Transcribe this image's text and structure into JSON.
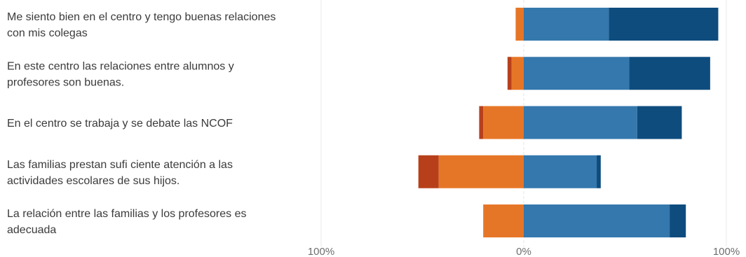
{
  "chart_data": {
    "type": "bar",
    "orientation": "horizontal",
    "stacked": "diverging",
    "categories": [
      [
        "Me siento bien en el centro y tengo buenas relaciones",
        "con mis colegas"
      ],
      [
        "En este centro las relaciones entre alumnos y",
        "profesores son buenas."
      ],
      [
        "En el centro se trabaja y se debate las NCOF"
      ],
      [
        "Las familias prestan sufi ciente atención a las",
        "actividades escolares de sus hijos."
      ],
      [
        "La relación entre las familias y los profesores es",
        "adecuada"
      ]
    ],
    "series": [
      {
        "side": "negative",
        "color": "#b7401b",
        "values": [
          0,
          2,
          2,
          10,
          0
        ]
      },
      {
        "side": "negative",
        "color": "#e67627",
        "values": [
          4,
          6,
          20,
          42,
          20
        ]
      },
      {
        "side": "positive",
        "color": "#3478ad",
        "values": [
          42,
          52,
          56,
          36,
          72
        ]
      },
      {
        "side": "positive",
        "color": "#0e4c7e",
        "values": [
          54,
          40,
          22,
          2,
          8
        ]
      }
    ],
    "xlim": [
      -100,
      100
    ],
    "xticks": [
      {
        "value": -100,
        "label": "100%"
      },
      {
        "value": 0,
        "label": "0%"
      },
      {
        "value": 100,
        "label": "100%"
      }
    ],
    "grid": true
  }
}
